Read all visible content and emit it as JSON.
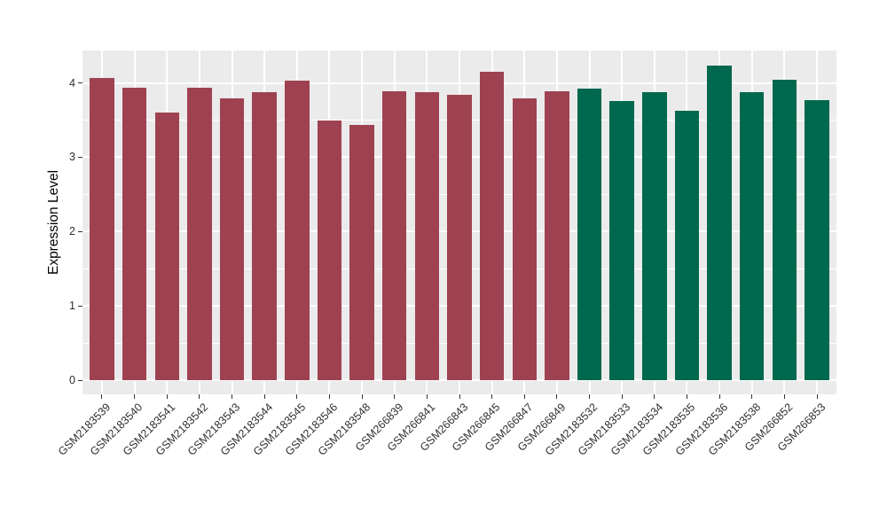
{
  "chart_data": {
    "type": "bar",
    "title": "",
    "xlabel": "",
    "ylabel": "Expression Level",
    "ylim": [
      0,
      4.44
    ],
    "yticks": [
      0,
      1,
      2,
      3,
      4
    ],
    "minor_gridlines": [
      0.5,
      1.5,
      2.5,
      3.5
    ],
    "legend": "none",
    "grid": "white major and minor horizontal lines plus vertical category lines on gray panel",
    "panel_background": "#EBEBEB",
    "gridline_color": "#FFFFFF",
    "tick_color": "#333333",
    "categories": [
      "GSM2183539",
      "GSM2183540",
      "GSM2183541",
      "GSM2183542",
      "GSM2183543",
      "GSM2183544",
      "GSM2183545",
      "GSM2183546",
      "GSM2183548",
      "GSM266839",
      "GSM266841",
      "GSM266843",
      "GSM266845",
      "GSM266847",
      "GSM266849",
      "GSM2183532",
      "GSM2183533",
      "GSM2183534",
      "GSM2183535",
      "GSM2183536",
      "GSM2183538",
      "GSM266852",
      "GSM266853"
    ],
    "values": [
      4.07,
      3.93,
      3.6,
      3.93,
      3.79,
      3.88,
      4.03,
      3.49,
      3.43,
      3.89,
      3.87,
      3.84,
      4.15,
      3.79,
      3.89,
      3.92,
      3.75,
      3.88,
      3.63,
      4.23,
      3.88,
      4.04,
      3.77
    ],
    "groups": [
      "group1",
      "group1",
      "group1",
      "group1",
      "group1",
      "group1",
      "group1",
      "group1",
      "group1",
      "group1",
      "group1",
      "group1",
      "group1",
      "group1",
      "group1",
      "group2",
      "group2",
      "group2",
      "group2",
      "group2",
      "group2",
      "group2",
      "group2"
    ],
    "group_colors": {
      "group1": "#9E4252",
      "group2": "#00684E"
    },
    "bar_width_fraction": 0.75
  }
}
